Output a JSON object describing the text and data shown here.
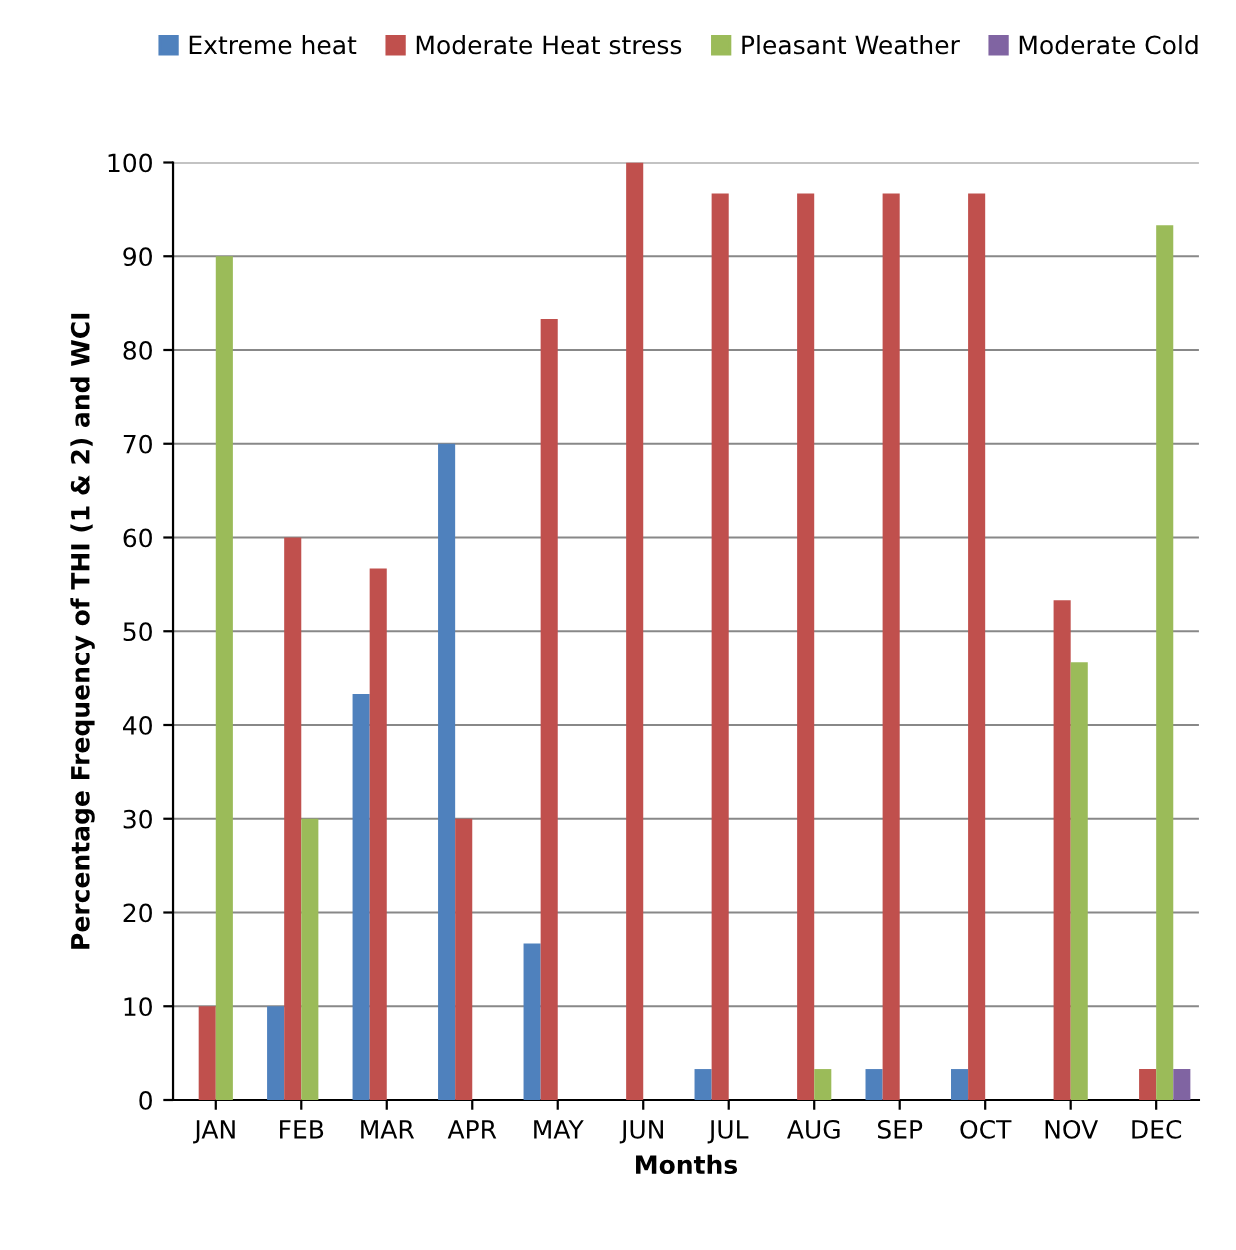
{
  "chart_data": {
    "type": "bar",
    "xlabel": "Months",
    "ylabel": "Percentage Frequency of THI (1 & 2) and WCI",
    "categories": [
      "JAN",
      "FEB",
      "MAR",
      "APR",
      "MAY",
      "JUN",
      "JUL",
      "AUG",
      "SEP",
      "OCT",
      "NOV",
      "DEC"
    ],
    "series": [
      {
        "name": "Extreme heat",
        "color": "#4f81bd",
        "values": [
          0,
          10,
          43.3,
          70,
          16.7,
          0,
          3.3,
          0,
          3.3,
          3.3,
          0,
          0
        ]
      },
      {
        "name": "Moderate Heat stress",
        "color": "#c0504d",
        "values": [
          10,
          60,
          56.7,
          30,
          83.3,
          100,
          96.7,
          96.7,
          96.7,
          96.7,
          53.3,
          3.3
        ]
      },
      {
        "name": "Pleasant Weather",
        "color": "#9bbb59",
        "values": [
          90,
          30,
          0,
          0,
          0,
          0,
          0,
          3.3,
          0,
          0,
          46.7,
          93.3
        ]
      },
      {
        "name": "Moderate Cold",
        "color": "#8064a2",
        "values": [
          0,
          0,
          0,
          0,
          0,
          0,
          0,
          0,
          0,
          0,
          0,
          3.3
        ]
      }
    ],
    "ylim": [
      0,
      100
    ],
    "yticks": [
      0,
      10,
      20,
      30,
      40,
      50,
      60,
      70,
      80,
      90,
      100
    ],
    "grid": "y",
    "legend": "top"
  }
}
